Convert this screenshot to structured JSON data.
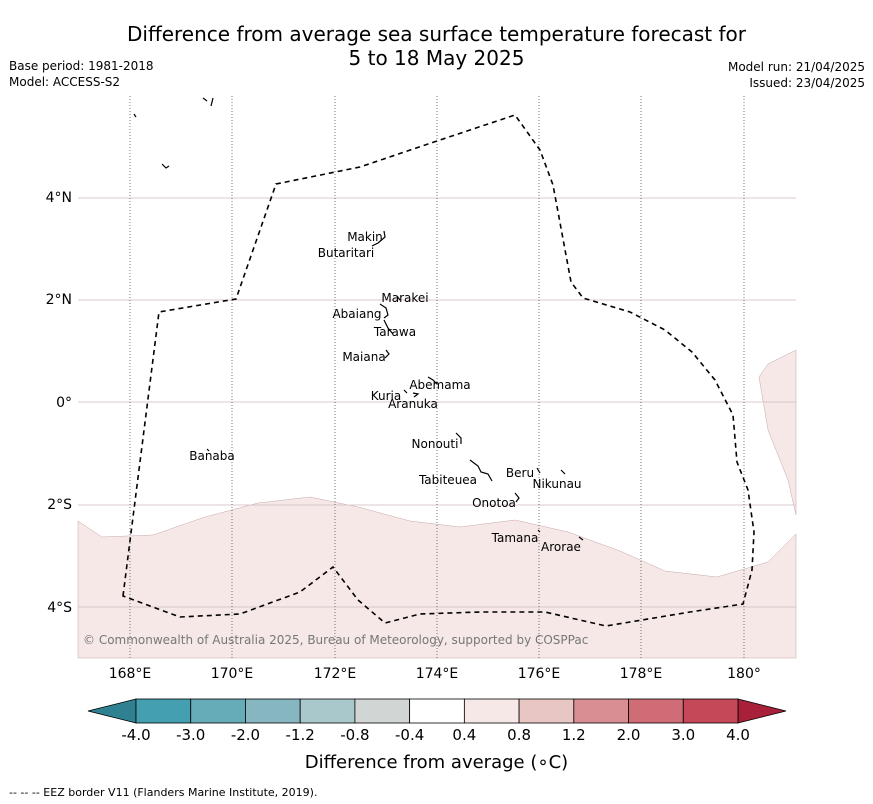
{
  "header": {
    "title_line1": "Difference from average sea surface temperature forecast for",
    "title_line2": "5 to 18 May 2025",
    "base_period": "Base period: 1981-2018",
    "model": "Model: ACCESS-S2",
    "model_run": "Model run: 21/04/2025",
    "issued": "Issued: 23/04/2025"
  },
  "map": {
    "lat_ticks": [
      "4°N",
      "2°N",
      "0°",
      "2°S",
      "4°S"
    ],
    "lon_ticks": [
      "168°E",
      "170°E",
      "172°E",
      "174°E",
      "176°E",
      "178°E",
      "180°"
    ],
    "copyright": "© Commonwealth of Australia 2025, Bureau of Meteorology, supported by COSPPac",
    "islands": [
      "Makin",
      "Butaritari",
      "Marakei",
      "Abaiang",
      "Tarawa",
      "Maiana",
      "Abemama",
      "Kuria",
      "Aranuka",
      "Nonouti",
      "Banaba",
      "Beru",
      "Nikunau",
      "Tabiteuea",
      "Onotoa",
      "Tamana",
      "Arorae"
    ],
    "colors": {
      "anomaly_fill": "#f5e8e6",
      "eez_border": "#000000",
      "gridline_lat": "#d8c8cc",
      "gridline_lon": "#555555"
    }
  },
  "colorbar": {
    "title": "Difference from average (∘C)",
    "tick_labels": [
      "-4.0",
      "-3.0",
      "-2.0",
      "-1.2",
      "-0.8",
      "-0.4",
      "0.4",
      "0.8",
      "1.2",
      "2.0",
      "3.0",
      "4.0"
    ],
    "colors": [
      "#44a0b0",
      "#66abb8",
      "#86b7c0",
      "#a9c8cc",
      "#d1d5d4",
      "#ffffff",
      "#f5e8e6",
      "#e8c6c3",
      "#d98e94",
      "#cf6c76",
      "#c44858"
    ],
    "under_color": "#2f8090",
    "over_color": "#a8203a"
  },
  "footnote": "--  --  -- EEZ border V11 (Flanders Marine Institute, 2019)."
}
